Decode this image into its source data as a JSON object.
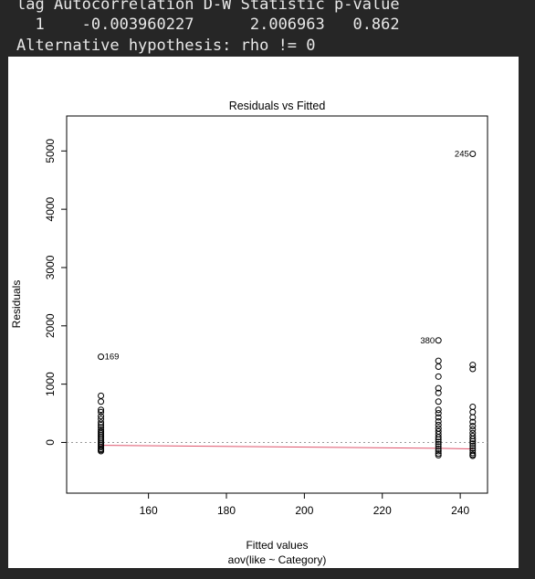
{
  "console": {
    "lines": [
      "lag Autocorrelation D-W Statistic p-value",
      "  1    -0.003960227      2.006963   0.862",
      "Alternative hypothesis: rho != 0"
    ]
  },
  "chart_data": {
    "type": "scatter",
    "title": "Residuals vs Fitted",
    "xlabel": "Fitted values",
    "xlabel_sub": "aov(like ~ Category)",
    "ylabel": "Residuals",
    "xlim": [
      139,
      247
    ],
    "ylim": [
      -870,
      5600
    ],
    "xticks": [
      160,
      180,
      200,
      220,
      240
    ],
    "yticks": [
      0,
      1000,
      2000,
      3000,
      4000,
      5000
    ],
    "x": [
      147.8,
      234.4,
      243.2
    ],
    "groups": [
      {
        "x": 147.8,
        "residuals": [
          1470,
          800,
          700,
          560,
          520,
          450,
          400,
          340,
          300,
          260,
          220,
          190,
          160,
          130,
          100,
          70,
          40,
          10,
          -20,
          -50,
          -80,
          -110,
          -130,
          -150
        ]
      },
      {
        "x": 234.4,
        "residuals": [
          1750,
          1400,
          1300,
          1130,
          930,
          850,
          700,
          560,
          500,
          430,
          360,
          300,
          240,
          190,
          140,
          90,
          50,
          10,
          -30,
          -70,
          -110,
          -150,
          -190,
          -220
        ]
      },
      {
        "x": 243.2,
        "residuals": [
          4950,
          1330,
          1260,
          610,
          520,
          430,
          350,
          280,
          220,
          160,
          110,
          60,
          20,
          -20,
          -60,
          -100,
          -140,
          -180,
          -210,
          -230
        ]
      }
    ],
    "annotations": [
      {
        "label": "169",
        "x": 147.8,
        "y": 1470,
        "side": "right"
      },
      {
        "label": "380",
        "x": 234.4,
        "y": 1750,
        "side": "left"
      },
      {
        "label": "245",
        "x": 243.2,
        "y": 4950,
        "side": "left"
      }
    ],
    "smooth_line": {
      "x": [
        147.8,
        234.4,
        243.2
      ],
      "y": [
        -50,
        -100,
        -110
      ],
      "color": "#df536b"
    },
    "reference_line": {
      "y": 0,
      "color": "#999999",
      "style": "dotted"
    },
    "point_color": "#000000"
  }
}
